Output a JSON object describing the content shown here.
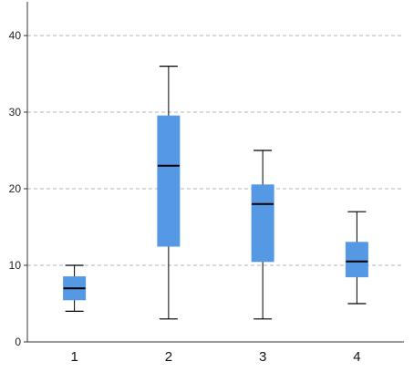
{
  "chart_data": {
    "type": "boxplot",
    "title": "",
    "xlabel": "",
    "ylabel": "",
    "ylim": [
      0,
      44
    ],
    "yticks": [
      0,
      10,
      20,
      30,
      40
    ],
    "grid": {
      "y": true,
      "style": "dashed"
    },
    "categories": [
      "1",
      "2",
      "3",
      "4"
    ],
    "boxes": [
      {
        "category": "1",
        "min": 4,
        "q1": 5.5,
        "median": 7,
        "q3": 8.5,
        "max": 10
      },
      {
        "category": "2",
        "min": 3,
        "q1": 12.5,
        "median": 23,
        "q3": 29.5,
        "max": 36
      },
      {
        "category": "3",
        "min": 3,
        "q1": 10.5,
        "median": 18,
        "q3": 20.5,
        "max": 25
      },
      {
        "category": "4",
        "min": 5,
        "q1": 8.5,
        "median": 10.5,
        "q3": 13,
        "max": 17
      }
    ],
    "colors": {
      "box_fill": "#5598e4",
      "median": "#000000",
      "grid": "#b3b3b3",
      "axis": "#333333"
    }
  }
}
